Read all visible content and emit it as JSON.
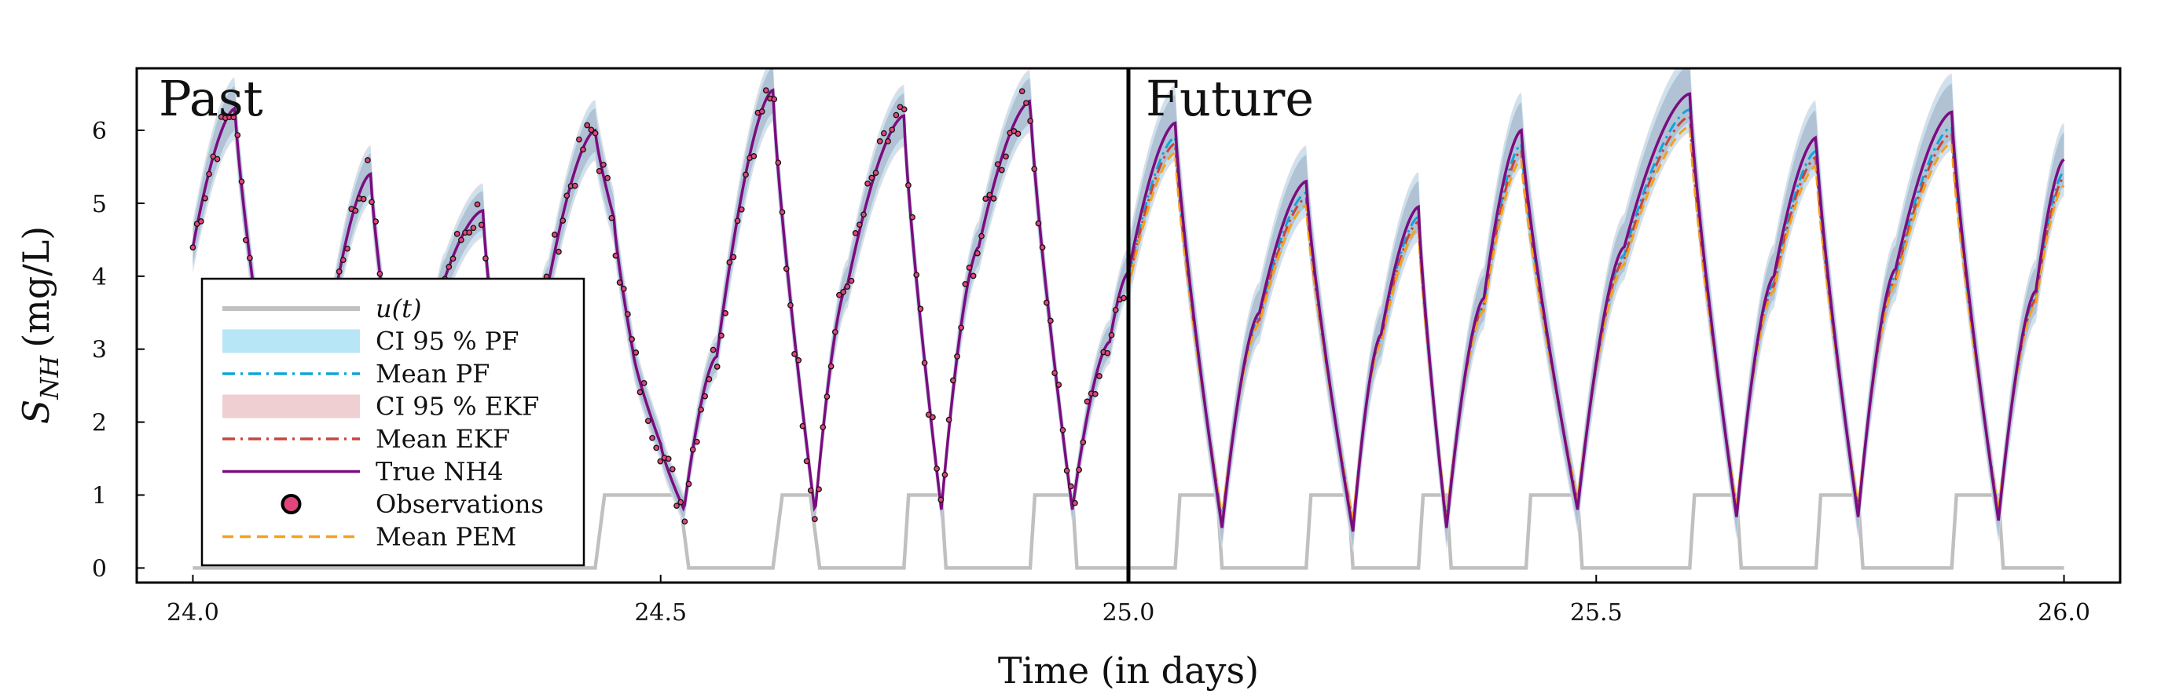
{
  "chart_data": {
    "type": "line",
    "xlabel": "Time (in days)",
    "ylabel_main": "S",
    "ylabel_sub": "NH",
    "ylabel_unit": "(mg/L)",
    "xlim": [
      23.94,
      26.06
    ],
    "ylim": [
      -0.2,
      6.85
    ],
    "x_ticks": [
      24.0,
      24.5,
      25.0,
      25.5,
      26.0
    ],
    "x_tick_labels": [
      "24.0",
      "24.5",
      "25.0",
      "25.5",
      "26.0"
    ],
    "y_ticks": [
      0,
      1,
      2,
      3,
      4,
      5,
      6
    ],
    "y_tick_labels": [
      "0",
      "1",
      "2",
      "3",
      "4",
      "5",
      "6"
    ],
    "split_x": 25.0,
    "region_labels": {
      "past": "Past",
      "future": "Future"
    },
    "grid": false,
    "legend_position": "bottom-left",
    "legend": [
      {
        "label": "u(t)",
        "style": "line",
        "color": "#c0c0c0"
      },
      {
        "label": "CI 95 % PF",
        "style": "band",
        "color": "#b7e6f7"
      },
      {
        "label": "Mean PF",
        "style": "dashdot",
        "color": "#0ea5dc"
      },
      {
        "label": "CI 95 % EKF",
        "style": "band",
        "color": "#f0cfd2"
      },
      {
        "label": "Mean EKF",
        "style": "dashdot",
        "color": "#c8453b"
      },
      {
        "label": "True NH4",
        "style": "line",
        "color": "#7b0c80"
      },
      {
        "label": "Observations",
        "style": "marker",
        "color": "#e0457b"
      },
      {
        "label": "Mean PEM",
        "style": "dashed",
        "color": "#f4a21c"
      }
    ],
    "truth_knots": [
      [
        24.0,
        4.4
      ],
      [
        24.045,
        6.3
      ],
      [
        24.1,
        0.75
      ],
      [
        24.15,
        3.6
      ],
      [
        24.19,
        5.4
      ],
      [
        24.235,
        0.85
      ],
      [
        24.27,
        4.0
      ],
      [
        24.31,
        4.9
      ],
      [
        24.345,
        0.9
      ],
      [
        24.38,
        3.9
      ],
      [
        24.43,
        6.0
      ],
      [
        24.45,
        4.8
      ],
      [
        24.47,
        3.0
      ],
      [
        24.5,
        1.7
      ],
      [
        24.525,
        0.8
      ],
      [
        24.56,
        2.9
      ],
      [
        24.62,
        6.55
      ],
      [
        24.665,
        0.75
      ],
      [
        24.7,
        3.9
      ],
      [
        24.76,
        6.2
      ],
      [
        24.8,
        0.8
      ],
      [
        24.84,
        4.4
      ],
      [
        24.895,
        6.4
      ],
      [
        24.94,
        0.8
      ],
      [
        24.98,
        3.1
      ],
      [
        25.0,
        4.05
      ],
      [
        25.05,
        6.1
      ],
      [
        25.1,
        0.55
      ],
      [
        25.14,
        3.5
      ],
      [
        25.19,
        5.3
      ],
      [
        25.24,
        0.5
      ],
      [
        25.27,
        3.2
      ],
      [
        25.31,
        4.95
      ],
      [
        25.34,
        0.55
      ],
      [
        25.38,
        3.7
      ],
      [
        25.42,
        6.0
      ],
      [
        25.48,
        0.8
      ],
      [
        25.53,
        4.4
      ],
      [
        25.6,
        6.5
      ],
      [
        25.65,
        0.7
      ],
      [
        25.69,
        4.0
      ],
      [
        25.735,
        5.9
      ],
      [
        25.78,
        0.7
      ],
      [
        25.82,
        4.1
      ],
      [
        25.88,
        6.25
      ],
      [
        25.93,
        0.65
      ],
      [
        25.97,
        3.8
      ],
      [
        26.0,
        5.6
      ]
    ],
    "input_u": [
      [
        24.0,
        0
      ],
      [
        24.43,
        0
      ],
      [
        24.44,
        1
      ],
      [
        24.52,
        1
      ],
      [
        24.53,
        0
      ],
      [
        24.62,
        0
      ],
      [
        24.63,
        1
      ],
      [
        24.66,
        1
      ],
      [
        24.67,
        0
      ],
      [
        24.76,
        0
      ],
      [
        24.765,
        1
      ],
      [
        24.8,
        1
      ],
      [
        24.805,
        0
      ],
      [
        24.895,
        0
      ],
      [
        24.9,
        1
      ],
      [
        24.94,
        1
      ],
      [
        24.945,
        0
      ],
      [
        25.05,
        0
      ],
      [
        25.055,
        1
      ],
      [
        25.095,
        1
      ],
      [
        25.1,
        0
      ],
      [
        25.19,
        0
      ],
      [
        25.195,
        1
      ],
      [
        25.235,
        1
      ],
      [
        25.24,
        0
      ],
      [
        25.31,
        0
      ],
      [
        25.315,
        1
      ],
      [
        25.34,
        1
      ],
      [
        25.345,
        0
      ],
      [
        25.425,
        0
      ],
      [
        25.43,
        1
      ],
      [
        25.48,
        1
      ],
      [
        25.485,
        0
      ],
      [
        25.6,
        0
      ],
      [
        25.605,
        1
      ],
      [
        25.65,
        1
      ],
      [
        25.655,
        0
      ],
      [
        25.735,
        0
      ],
      [
        25.74,
        1
      ],
      [
        25.78,
        1
      ],
      [
        25.785,
        0
      ],
      [
        25.88,
        0
      ],
      [
        25.885,
        1
      ],
      [
        25.93,
        1
      ],
      [
        25.935,
        0
      ],
      [
        26.0,
        0
      ]
    ]
  },
  "observations": {
    "count": 230,
    "noise_sd": 0.13,
    "x_start": 24.0,
    "x_end": 24.995
  }
}
